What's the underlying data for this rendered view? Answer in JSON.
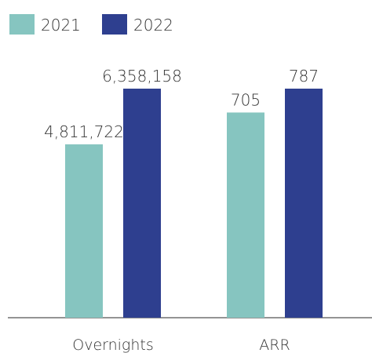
{
  "chart_data": {
    "type": "bar",
    "categories": [
      "Overnights",
      "ARR"
    ],
    "series": [
      {
        "name": "2021",
        "color": "#86c5c0",
        "values": [
          4811722,
          705
        ],
        "value_labels": [
          "4,811,722",
          "705"
        ]
      },
      {
        "name": "2022",
        "color": "#2e3f8f",
        "values": [
          6358158,
          787
        ],
        "value_labels": [
          "6,358,158",
          "787"
        ]
      }
    ]
  }
}
